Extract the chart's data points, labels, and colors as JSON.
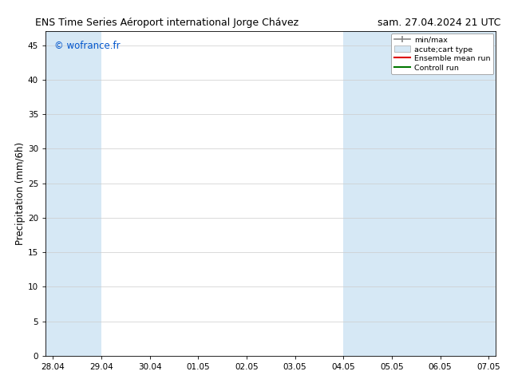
{
  "title_left": "ENS Time Series Aéroport international Jorge Chávez",
  "title_right": "sam. 27.04.2024 21 UTC",
  "ylabel": "Precipitation (mm/6h)",
  "watermark": "© wofrance.fr",
  "watermark_color": "#0055cc",
  "background_color": "#ffffff",
  "plot_bg_color": "#ffffff",
  "shaded_band_color": "#d6e8f5",
  "ylim": [
    0,
    47
  ],
  "yticks": [
    0,
    5,
    10,
    15,
    20,
    25,
    30,
    35,
    40,
    45
  ],
  "x_tick_labels": [
    "28.04",
    "29.04",
    "30.04",
    "01.05",
    "02.05",
    "03.05",
    "04.05",
    "05.05",
    "06.05",
    "07.05"
  ],
  "x_tick_positions": [
    0,
    1,
    2,
    3,
    4,
    5,
    6,
    7,
    8,
    9
  ],
  "xlim": [
    -0.15,
    9.15
  ],
  "shaded_regions": [
    [
      -0.15,
      1.0
    ],
    [
      6.0,
      7.0
    ],
    [
      7.0,
      8.0
    ],
    [
      8.0,
      9.15
    ]
  ],
  "legend_labels": [
    "min/max",
    "acute;cart type",
    "Ensemble mean run",
    "Controll run"
  ],
  "title_fontsize": 9,
  "tick_fontsize": 7.5,
  "ylabel_fontsize": 8.5,
  "watermark_fontsize": 8.5
}
